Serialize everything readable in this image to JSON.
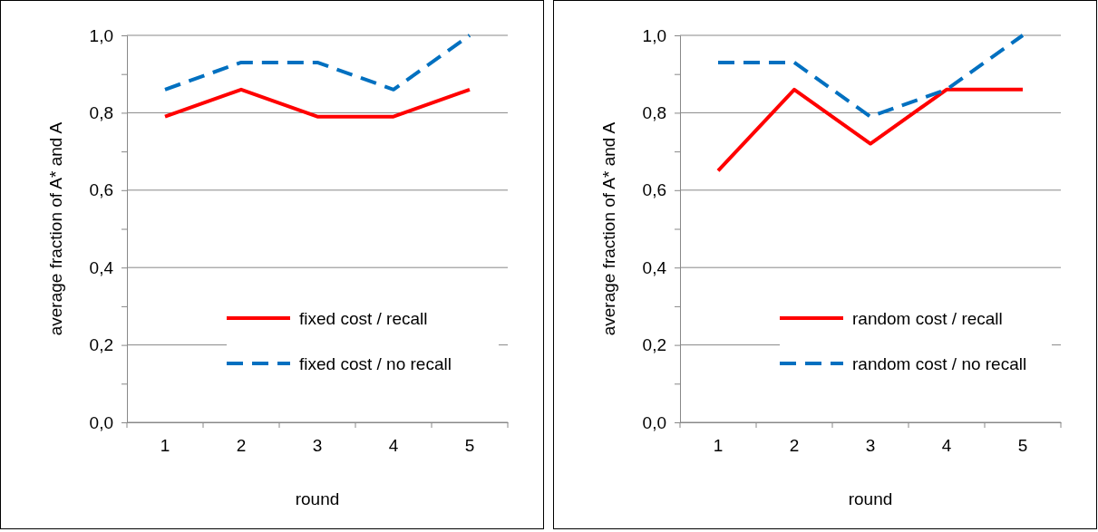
{
  "chart_data": [
    {
      "type": "line",
      "xlabel": "round",
      "ylabel": "average fraction of A* and A",
      "categories": [
        "1",
        "2",
        "3",
        "4",
        "5"
      ],
      "ylim": [
        0,
        1
      ],
      "yticks": [
        {
          "value": 0,
          "label": "0,0"
        },
        {
          "value": 0.1,
          "label": null
        },
        {
          "value": 0.2,
          "label": "0,2"
        },
        {
          "value": 0.3,
          "label": null
        },
        {
          "value": 0.4,
          "label": "0,4"
        },
        {
          "value": 0.5,
          "label": null
        },
        {
          "value": 0.6,
          "label": "0,6"
        },
        {
          "value": 0.7,
          "label": null
        },
        {
          "value": 0.8,
          "label": "0,8"
        },
        {
          "value": 0.9,
          "label": null
        },
        {
          "value": 1,
          "label": "1,0"
        }
      ],
      "grid": "y",
      "legend": "bottom right",
      "marker": "none",
      "series": [
        {
          "name": "fixed cost / recall",
          "color": "#ff0000",
          "line_style": "solid",
          "values": [
            0.79,
            0.86,
            0.79,
            0.79,
            0.86
          ]
        },
        {
          "name": "fixed cost / no recall",
          "color": "#0070c0",
          "line_style": "dashed",
          "values": [
            0.86,
            0.93,
            0.93,
            0.86,
            1.0
          ]
        }
      ]
    },
    {
      "type": "line",
      "xlabel": "round",
      "ylabel": "average fraction of A* and A",
      "categories": [
        "1",
        "2",
        "3",
        "4",
        "5"
      ],
      "ylim": [
        0,
        1
      ],
      "yticks": [
        {
          "value": 0,
          "label": "0,0"
        },
        {
          "value": 0.1,
          "label": null
        },
        {
          "value": 0.2,
          "label": "0,2"
        },
        {
          "value": 0.3,
          "label": null
        },
        {
          "value": 0.4,
          "label": "0,4"
        },
        {
          "value": 0.5,
          "label": null
        },
        {
          "value": 0.6,
          "label": "0,6"
        },
        {
          "value": 0.7,
          "label": null
        },
        {
          "value": 0.8,
          "label": "0,8"
        },
        {
          "value": 0.9,
          "label": null
        },
        {
          "value": 1,
          "label": "1,0"
        }
      ],
      "grid": "y",
      "legend": "bottom right",
      "marker": "none",
      "series": [
        {
          "name": "random cost / recall",
          "color": "#ff0000",
          "line_style": "solid",
          "values": [
            0.65,
            0.86,
            0.72,
            0.86,
            0.86
          ]
        },
        {
          "name": "random cost / no recall",
          "color": "#0070c0",
          "line_style": "dashed",
          "values": [
            0.93,
            0.93,
            0.79,
            0.86,
            1.0
          ]
        }
      ]
    }
  ]
}
